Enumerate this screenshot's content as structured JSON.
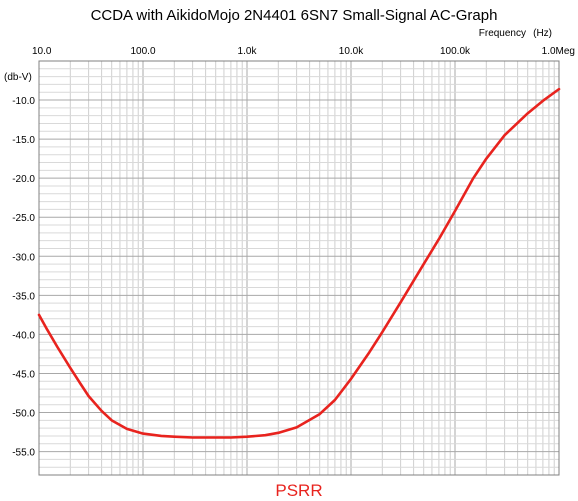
{
  "chart_data": {
    "type": "line",
    "title": "CCDA with AikidoMojo 2N4401 6SN7 Small-Signal AC-Graph",
    "xlabel": "Frequency",
    "xunit": "(Hz)",
    "ylabel": "(db-V)",
    "xscale": "log",
    "xlim": [
      10,
      1000000
    ],
    "ylim": [
      -58,
      -5
    ],
    "grid": true,
    "x_ticks": [
      {
        "v": 10,
        "label": "10.0"
      },
      {
        "v": 100,
        "label": "100.0"
      },
      {
        "v": 1000,
        "label": "1.0k"
      },
      {
        "v": 10000,
        "label": "10.0k"
      },
      {
        "v": 100000,
        "label": "100.0k"
      },
      {
        "v": 1000000,
        "label": "1.0Meg"
      }
    ],
    "y_ticks": [
      {
        "v": -10,
        "label": "-10.0"
      },
      {
        "v": -15,
        "label": "-15.0"
      },
      {
        "v": -20,
        "label": "-20.0"
      },
      {
        "v": -25,
        "label": "-25.0"
      },
      {
        "v": -30,
        "label": "-30.0"
      },
      {
        "v": -35,
        "label": "-35.0"
      },
      {
        "v": -40,
        "label": "-40.0"
      },
      {
        "v": -45,
        "label": "-45.0"
      },
      {
        "v": -50,
        "label": "-50.0"
      },
      {
        "v": -55,
        "label": "-55.0"
      }
    ],
    "series": [
      {
        "name": "PSRR",
        "color": "#e8231e",
        "points": [
          [
            10,
            -37.5
          ],
          [
            12,
            -39.4
          ],
          [
            15,
            -41.6
          ],
          [
            20,
            -44.3
          ],
          [
            25,
            -46.3
          ],
          [
            30,
            -47.9
          ],
          [
            40,
            -49.8
          ],
          [
            50,
            -51.0
          ],
          [
            70,
            -52.1
          ],
          [
            100,
            -52.7
          ],
          [
            150,
            -53.0
          ],
          [
            200,
            -53.1
          ],
          [
            300,
            -53.2
          ],
          [
            500,
            -53.2
          ],
          [
            700,
            -53.2
          ],
          [
            1000,
            -53.1
          ],
          [
            1500,
            -52.9
          ],
          [
            2000,
            -52.6
          ],
          [
            3000,
            -51.9
          ],
          [
            5000,
            -50.2
          ],
          [
            7000,
            -48.4
          ],
          [
            10000,
            -45.7
          ],
          [
            15000,
            -42.3
          ],
          [
            20000,
            -39.7
          ],
          [
            30000,
            -35.9
          ],
          [
            50000,
            -31.0
          ],
          [
            70000,
            -27.8
          ],
          [
            100000,
            -24.2
          ],
          [
            150000,
            -20.0
          ],
          [
            200000,
            -17.5
          ],
          [
            300000,
            -14.5
          ],
          [
            500000,
            -11.7
          ],
          [
            700000,
            -10.1
          ],
          [
            1000000,
            -8.6
          ]
        ]
      }
    ]
  }
}
